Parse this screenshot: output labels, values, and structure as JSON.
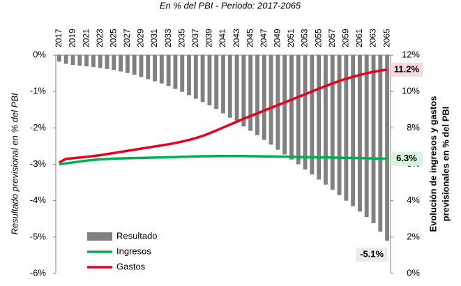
{
  "chart_data": {
    "type": "bar-line",
    "title": "En % del PBI - Periodo: 2017-2065",
    "ylabel": "Resultado previsional en % del PBI",
    "y2label": [
      "Evolución de ingresos y gastos",
      "previsionales en % del PBI"
    ],
    "categories": [
      2017,
      null,
      2019,
      null,
      2021,
      null,
      2023,
      null,
      2025,
      null,
      2027,
      null,
      2029,
      null,
      2031,
      null,
      2033,
      null,
      2035,
      null,
      2037,
      null,
      2039,
      null,
      2041,
      null,
      2043,
      null,
      2045,
      null,
      2047,
      null,
      2049,
      null,
      2051,
      null,
      2053,
      null,
      2055,
      null,
      2057,
      null,
      2059,
      null,
      2061,
      null,
      2063,
      null,
      2065
    ],
    "ylim": [
      -6,
      0
    ],
    "yticks": [
      {
        "value": 0,
        "label": "0%"
      },
      {
        "value": -1,
        "label": "-1%"
      },
      {
        "value": -2,
        "label": "-2%"
      },
      {
        "value": -3,
        "label": "-3%"
      },
      {
        "value": -4,
        "label": "-4%"
      },
      {
        "value": -5,
        "label": "-5%"
      },
      {
        "value": -6,
        "label": "-6%"
      }
    ],
    "y2lim": [
      0,
      12
    ],
    "y2ticks": [
      {
        "value": 12,
        "label": "12%"
      },
      {
        "value": 10,
        "label": "10%"
      },
      {
        "value": 8,
        "label": "8%"
      },
      {
        "value": 6,
        "label": "6%"
      },
      {
        "value": 4,
        "label": "4%"
      },
      {
        "value": 2,
        "label": "2%"
      },
      {
        "value": 0,
        "label": "0%"
      }
    ],
    "legend": "lower left",
    "series": [
      {
        "name": "Resultado",
        "kind": "bar",
        "color": "#808080",
        "values": [
          -0.18,
          -0.24,
          -0.27,
          -0.29,
          -0.31,
          -0.33,
          -0.35,
          -0.38,
          -0.41,
          -0.45,
          -0.49,
          -0.54,
          -0.6,
          -0.66,
          -0.72,
          -0.78,
          -0.85,
          -0.93,
          -1.01,
          -1.1,
          -1.2,
          -1.29,
          -1.38,
          -1.48,
          -1.6,
          -1.72,
          -1.84,
          -1.96,
          -2.08,
          -2.2,
          -2.33,
          -2.46,
          -2.6,
          -2.73,
          -2.87,
          -3.0,
          -3.14,
          -3.28,
          -3.42,
          -3.56,
          -3.7,
          -3.85,
          -4.0,
          -4.15,
          -4.3,
          -4.45,
          -4.62,
          -4.85,
          -5.1
        ],
        "value_labels": [
          null,
          null,
          null,
          null,
          null,
          null,
          null,
          null,
          null,
          null,
          null,
          null,
          null,
          null,
          null,
          null,
          null,
          null,
          null,
          null,
          null,
          null,
          null,
          null,
          null,
          null,
          null,
          null,
          null,
          null,
          null,
          null,
          null,
          null,
          null,
          null,
          null,
          null,
          null,
          null,
          null,
          null,
          null,
          null,
          null,
          null,
          null,
          null,
          "-5.1%"
        ]
      },
      {
        "name": "Ingresos",
        "kind": "line",
        "axis": "y2",
        "color": "#00b050",
        "values": [
          6.0,
          6.05,
          6.1,
          6.15,
          6.2,
          6.24,
          6.27,
          6.29,
          6.31,
          6.32,
          6.33,
          6.34,
          6.35,
          6.36,
          6.37,
          6.38,
          6.39,
          6.4,
          6.41,
          6.42,
          6.43,
          6.44,
          6.44,
          6.45,
          6.45,
          6.45,
          6.45,
          6.45,
          6.44,
          6.44,
          6.43,
          6.43,
          6.42,
          6.42,
          6.41,
          6.4,
          6.4,
          6.39,
          6.38,
          6.38,
          6.37,
          6.36,
          6.35,
          6.35,
          6.34,
          6.33,
          6.32,
          6.31,
          6.3
        ],
        "value_labels": [
          null,
          null,
          null,
          null,
          null,
          null,
          null,
          null,
          null,
          null,
          null,
          null,
          null,
          null,
          null,
          null,
          null,
          null,
          null,
          null,
          null,
          null,
          null,
          null,
          null,
          null,
          null,
          null,
          null,
          null,
          null,
          null,
          null,
          null,
          null,
          null,
          null,
          null,
          null,
          null,
          null,
          null,
          null,
          null,
          null,
          null,
          null,
          null,
          "6.3%"
        ]
      },
      {
        "name": "Gastos",
        "kind": "line",
        "axis": "y2",
        "color": "#e8001c",
        "values": [
          6.1,
          6.3,
          6.33,
          6.37,
          6.41,
          6.45,
          6.5,
          6.56,
          6.62,
          6.68,
          6.74,
          6.8,
          6.86,
          6.92,
          6.98,
          7.04,
          7.1,
          7.17,
          7.25,
          7.34,
          7.44,
          7.56,
          7.7,
          7.86,
          8.02,
          8.18,
          8.34,
          8.5,
          8.65,
          8.8,
          8.95,
          9.1,
          9.25,
          9.4,
          9.55,
          9.7,
          9.85,
          10.0,
          10.15,
          10.3,
          10.44,
          10.58,
          10.7,
          10.81,
          10.91,
          11.0,
          11.08,
          11.15,
          11.2
        ],
        "value_labels": [
          null,
          null,
          null,
          null,
          null,
          null,
          null,
          null,
          null,
          null,
          null,
          null,
          null,
          null,
          null,
          null,
          null,
          null,
          null,
          null,
          null,
          null,
          null,
          null,
          null,
          null,
          null,
          null,
          null,
          null,
          null,
          null,
          null,
          null,
          null,
          null,
          null,
          null,
          null,
          null,
          null,
          null,
          null,
          null,
          null,
          null,
          null,
          null,
          "11.2%"
        ]
      }
    ]
  }
}
